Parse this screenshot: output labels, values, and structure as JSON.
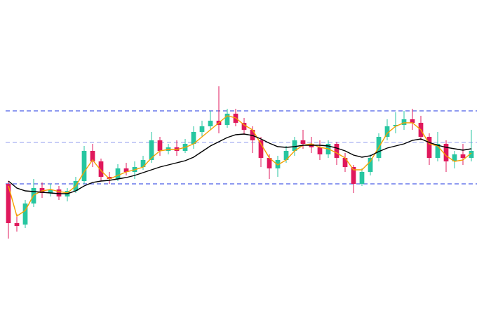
{
  "chart_data": {
    "type": "candlestick",
    "ylim": [
      0,
      466
    ],
    "up_color": "#26c6a0",
    "down_color": "#e0185c",
    "open": [
      204,
      148,
      146,
      176,
      198,
      191,
      196,
      186,
      194,
      208,
      251,
      236,
      214,
      211,
      226,
      221,
      228,
      238,
      266,
      251,
      256,
      251,
      261,
      278,
      286,
      294,
      288,
      304,
      291,
      281,
      266,
      241,
      226,
      238,
      251,
      266,
      261,
      256,
      246,
      261,
      241,
      228,
      204,
      221,
      241,
      271,
      286,
      288,
      296,
      291,
      271,
      241,
      261,
      236,
      246,
      241
    ],
    "high": [
      208,
      161,
      181,
      211,
      206,
      204,
      201,
      198,
      214,
      258,
      261,
      240,
      221,
      232,
      234,
      236,
      244,
      278,
      271,
      261,
      266,
      268,
      286,
      294,
      308,
      343,
      311,
      311,
      298,
      286,
      271,
      246,
      244,
      258,
      271,
      281,
      271,
      266,
      266,
      264,
      248,
      231,
      226,
      246,
      276,
      296,
      306,
      308,
      311,
      301,
      276,
      278,
      266,
      251,
      261,
      281
    ],
    "low": [
      126,
      136,
      141,
      171,
      184,
      186,
      181,
      179,
      191,
      204,
      228,
      208,
      204,
      208,
      216,
      211,
      224,
      234,
      244,
      246,
      244,
      248,
      254,
      271,
      281,
      276,
      284,
      286,
      274,
      248,
      228,
      211,
      214,
      234,
      244,
      254,
      248,
      238,
      241,
      231,
      221,
      191,
      201,
      216,
      236,
      266,
      276,
      281,
      281,
      266,
      231,
      236,
      221,
      226,
      231,
      236
    ],
    "close": [
      148,
      144,
      176,
      198,
      191,
      196,
      186,
      194,
      208,
      251,
      236,
      214,
      211,
      226,
      221,
      228,
      238,
      266,
      251,
      256,
      251,
      261,
      278,
      286,
      294,
      288,
      304,
      291,
      281,
      266,
      241,
      226,
      238,
      251,
      266,
      261,
      256,
      246,
      261,
      241,
      228,
      204,
      221,
      241,
      271,
      286,
      288,
      296,
      291,
      271,
      241,
      261,
      236,
      246,
      241,
      251
    ],
    "lines": [
      {
        "color": "#f5a000",
        "values": [
          201,
          158,
          166,
          188,
          194,
          196,
          193,
          191,
          201,
          221,
          238,
          223,
          211,
          216,
          221,
          224,
          228,
          241,
          251,
          253,
          253,
          256,
          261,
          271,
          281,
          291,
          301,
          298,
          288,
          281,
          261,
          241,
          231,
          238,
          251,
          259,
          261,
          256,
          254,
          248,
          241,
          224,
          224,
          236,
          256,
          276,
          286,
          291,
          291,
          281,
          261,
          258,
          244,
          236,
          238,
          248
        ]
      },
      {
        "color": "#000000",
        "values": [
          208,
          198,
          194,
          193,
          192,
          191,
          190,
          190,
          194,
          201,
          206,
          208,
          209,
          211,
          213,
          216,
          220,
          224,
          228,
          231,
          234,
          237,
          242,
          250,
          258,
          264,
          270,
          274,
          275,
          273,
          268,
          262,
          257,
          256,
          257,
          259,
          259,
          259,
          258,
          255,
          251,
          245,
          242,
          244,
          250,
          255,
          258,
          261,
          266,
          268,
          263,
          259,
          256,
          254,
          252,
          254
        ]
      }
    ],
    "levels": [
      {
        "value": 308,
        "color": "#4a5de8"
      },
      {
        "value": 263,
        "color": "#a9b0f2"
      },
      {
        "value": 204,
        "color": "#4a5de8"
      }
    ]
  }
}
